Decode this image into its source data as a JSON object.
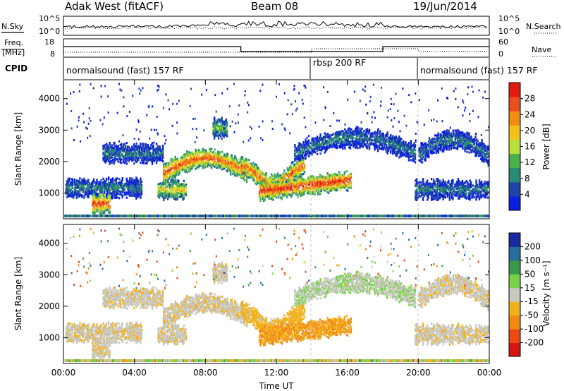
{
  "header": {
    "station": "Adak West (fitACF)",
    "beam": "Beam 08",
    "date": "19/Jun/2014"
  },
  "noise_panel": {
    "left_label": "N.Sky",
    "right_label": "N.Search",
    "left_ticks": [
      "10^5",
      "10^0"
    ],
    "right_ticks": [
      "10^5",
      "10^0"
    ]
  },
  "freq_panel": {
    "left_label_1": "Freq.",
    "left_label_2": "[MHz]",
    "right_label": "Nave",
    "left_ticks": [
      "18",
      "8"
    ],
    "right_ticks": [
      "60",
      "0"
    ]
  },
  "cpid_panel": {
    "label": "CPID",
    "modes": [
      "normalsound (fast) 157 RF",
      "rbsp 200 RF",
      "normalsound (fast) 157 RF"
    ]
  },
  "x_axis": {
    "label": "Time UT",
    "ticks": [
      "00:00",
      "04:00",
      "08:00",
      "12:00",
      "16:00",
      "20:00",
      "00:00"
    ]
  },
  "power_panel": {
    "ylabel": "Slant Range [km]",
    "yticks": [
      "4000",
      "3000",
      "2000",
      "1000"
    ],
    "colorbar_label": "Power [dB]",
    "colorbar_ticks": [
      "28",
      "24",
      "20",
      "16",
      "12",
      "8",
      "4"
    ],
    "colors": [
      "#0a1fe0",
      "#1f44a8",
      "#2a8a78",
      "#4cb04a",
      "#b8e03a",
      "#f2c21a",
      "#f28c14",
      "#e8501e",
      "#e01c10"
    ]
  },
  "velocity_panel": {
    "ylabel": "Slant Range [km]",
    "yticks": [
      "4000",
      "3000",
      "2000",
      "1000"
    ],
    "colorbar_label": "Velocity [m s⁻¹]",
    "colorbar_ticks": [
      "200",
      "100",
      "50",
      "15",
      "-15",
      "-50",
      "-100",
      "-200"
    ],
    "colors": [
      "#1a2a9e",
      "#2a6ea0",
      "#3a9a4a",
      "#7ad24a",
      "#c8c8c0",
      "#f2b21e",
      "#f28a14",
      "#ec4a14",
      "#d61414"
    ]
  },
  "chart_data": {
    "type": "heatmap",
    "title": "Adak West (fitACF) Beam 08 19/Jun/2014",
    "xlabel": "Time UT",
    "ylabel": "Slant Range [km]",
    "xlim": [
      0,
      24
    ],
    "ylim": [
      180,
      4600
    ],
    "mode_change_hours": [
      14,
      20
    ],
    "scatter_bands": [
      {
        "name": "near-range low band",
        "t_start": 0.1,
        "t_end": 4.4,
        "r_center": 1200,
        "power_db": 8,
        "velocity": -5
      },
      {
        "name": "lower patch",
        "t_start": 1.6,
        "t_end": 2.6,
        "r_center": 700,
        "power_db": 24,
        "velocity": -5
      },
      {
        "name": "morning mid band",
        "t_start": 2.2,
        "t_end": 5.6,
        "r_center": 2300,
        "power_db": 8,
        "velocity": -5
      },
      {
        "name": "morning patch",
        "t_start": 5.3,
        "t_end": 6.9,
        "r_center": 1150,
        "power_db": 16,
        "velocity": -5
      },
      {
        "name": "arc toward noon",
        "t_start": 5.6,
        "t_end": 10.4,
        "r_center": 1900,
        "power_db": 22,
        "velocity": -5
      },
      {
        "name": "noon dip",
        "t_start": 10.0,
        "t_end": 13.6,
        "r_center": 1600,
        "power_db": 22,
        "velocity": -30
      },
      {
        "name": "afternoon strong band",
        "t_start": 11.0,
        "t_end": 16.2,
        "r_center": 1100,
        "power_db": 24,
        "velocity": -50
      },
      {
        "name": "afternoon upper arc",
        "t_start": 13.0,
        "t_end": 19.8,
        "r_center": 2550,
        "power_db": 8,
        "velocity": 10
      },
      {
        "name": "evening far arc",
        "t_start": 20.0,
        "t_end": 23.9,
        "r_center": 2500,
        "power_db": 8,
        "velocity": -5
      },
      {
        "name": "evening near band",
        "t_start": 19.8,
        "t_end": 23.9,
        "r_center": 1150,
        "power_db": 8,
        "velocity": -5
      },
      {
        "name": "isolated patch",
        "t_start": 8.4,
        "t_end": 9.2,
        "r_center": 3100,
        "power_db": 12,
        "velocity": -5
      }
    ]
  }
}
